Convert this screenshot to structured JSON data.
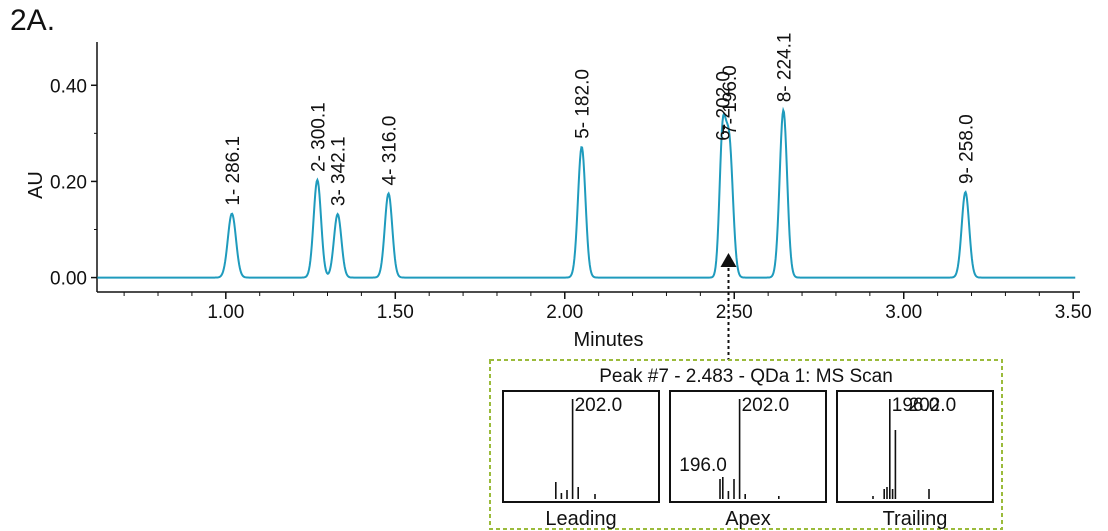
{
  "figure_label": "2A.",
  "colors": {
    "trace": "#1f9bbd",
    "axis": "#111111",
    "inset_border": "#9bbb3b",
    "ms_bars": "#111111"
  },
  "chart_data": {
    "type": "line",
    "title": "",
    "xlabel": "Minutes",
    "ylabel": "AU",
    "xlim": [
      0.62,
      3.52
    ],
    "ylim": [
      -0.03,
      0.49
    ],
    "x_ticks": [
      1.0,
      1.5,
      2.0,
      2.5,
      3.0,
      3.5
    ],
    "x_tick_labels": [
      "1.00",
      "1.50",
      "2.00",
      "2.50",
      "3.00",
      "3.50"
    ],
    "y_ticks": [
      0.0,
      0.2,
      0.4
    ],
    "y_tick_labels": [
      "0.00",
      "0.20",
      "0.40"
    ],
    "grid": false,
    "baseline": 0.0,
    "peaks": [
      {
        "label": "1- 286.1",
        "rt": 1.018,
        "height": 0.133,
        "width": 0.012
      },
      {
        "label": "2- 300.1",
        "rt": 1.27,
        "height": 0.203,
        "width": 0.011
      },
      {
        "label": "3- 342.1",
        "rt": 1.33,
        "height": 0.132,
        "width": 0.011
      },
      {
        "label": "4- 316.0",
        "rt": 1.48,
        "height": 0.175,
        "width": 0.011
      },
      {
        "label": "5- 182.0",
        "rt": 2.05,
        "height": 0.272,
        "width": 0.011
      },
      {
        "label": "6- 202.0",
        "rt": 2.465,
        "height": 0.268,
        "width": 0.009
      },
      {
        "label": "7- 196.0",
        "rt": 2.485,
        "height": 0.28,
        "width": 0.011
      },
      {
        "label": "8- 224.1",
        "rt": 2.645,
        "height": 0.348,
        "width": 0.011
      },
      {
        "label": "9- 258.0",
        "rt": 3.182,
        "height": 0.178,
        "width": 0.011
      }
    ],
    "marker": {
      "x": 2.483,
      "label": "Peak #7"
    },
    "inset": {
      "title": "Peak #7 - 2.483 - QDa 1: MS Scan",
      "panels": [
        {
          "label": "Leading",
          "annotations": [
            {
              "text": "202.0",
              "mz": 202.0
            }
          ],
          "bars": [
            {
              "mz": 196.0,
              "rel": 0.17
            },
            {
              "mz": 198.0,
              "rel": 0.06
            },
            {
              "mz": 200.0,
              "rel": 0.09
            },
            {
              "mz": 202.0,
              "rel": 1.0
            },
            {
              "mz": 204.0,
              "rel": 0.12
            },
            {
              "mz": 210.0,
              "rel": 0.05
            }
          ]
        },
        {
          "label": "Apex",
          "annotations": [
            {
              "text": "202.0",
              "mz": 202.0
            },
            {
              "text": "196.0",
              "mz": 196.0
            }
          ],
          "bars": [
            {
              "mz": 195.0,
              "rel": 0.2
            },
            {
              "mz": 196.0,
              "rel": 0.22
            },
            {
              "mz": 198.0,
              "rel": 0.08
            },
            {
              "mz": 200.0,
              "rel": 0.2
            },
            {
              "mz": 202.0,
              "rel": 1.0
            },
            {
              "mz": 204.0,
              "rel": 0.05
            },
            {
              "mz": 216.0,
              "rel": 0.03
            }
          ]
        },
        {
          "label": "Trailing",
          "annotations": [
            {
              "text": "196.0",
              "mz": 196.0
            },
            {
              "text": "202.0",
              "mz": 202.0
            }
          ],
          "bars": [
            {
              "mz": 190.0,
              "rel": 0.03
            },
            {
              "mz": 194.0,
              "rel": 0.1
            },
            {
              "mz": 195.0,
              "rel": 0.12
            },
            {
              "mz": 196.0,
              "rel": 1.0
            },
            {
              "mz": 197.0,
              "rel": 0.1
            },
            {
              "mz": 198.0,
              "rel": 0.69
            },
            {
              "mz": 210.0,
              "rel": 0.1
            }
          ]
        }
      ],
      "mz_range": [
        180,
        230
      ]
    }
  }
}
